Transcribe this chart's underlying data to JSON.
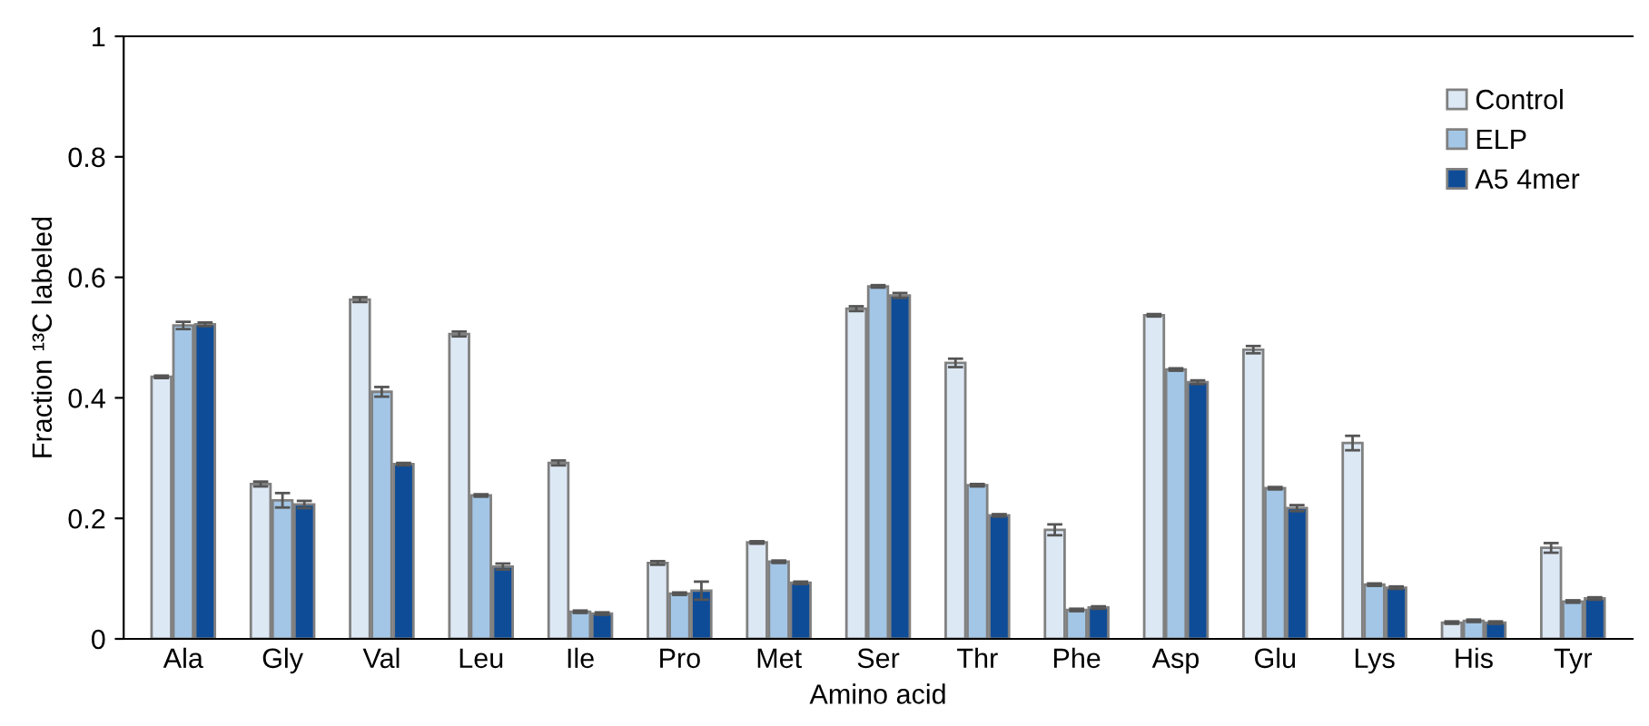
{
  "chart_data": {
    "type": "bar",
    "xlabel": "Amino acid",
    "ylabel": "Fraction ¹³C labeled",
    "categories": [
      "Ala",
      "Gly",
      "Val",
      "Leu",
      "Ile",
      "Pro",
      "Met",
      "Ser",
      "Thr",
      "Phe",
      "Asp",
      "Glu",
      "Lys",
      "His",
      "Tyr"
    ],
    "series": [
      {
        "name": "Control",
        "color": "#dde8f5",
        "values": [
          0.435,
          0.257,
          0.563,
          0.506,
          0.292,
          0.126,
          0.16,
          0.548,
          0.458,
          0.181,
          0.537,
          0.48,
          0.325,
          0.027,
          0.151
        ],
        "errors": [
          0.002,
          0.004,
          0.004,
          0.004,
          0.004,
          0.003,
          0.002,
          0.004,
          0.007,
          0.009,
          0.002,
          0.006,
          0.012,
          0.002,
          0.008
        ]
      },
      {
        "name": "ELP",
        "color": "#a3c6e6",
        "values": [
          0.52,
          0.23,
          0.41,
          0.238,
          0.045,
          0.075,
          0.128,
          0.585,
          0.255,
          0.048,
          0.447,
          0.25,
          0.09,
          0.03,
          0.062
        ],
        "errors": [
          0.006,
          0.012,
          0.008,
          0.002,
          0.002,
          0.002,
          0.002,
          0.002,
          0.002,
          0.002,
          0.002,
          0.002,
          0.002,
          0.002,
          0.002
        ]
      },
      {
        "name": "A5 4mer",
        "color": "#0f4c97",
        "values": [
          0.522,
          0.223,
          0.29,
          0.12,
          0.042,
          0.08,
          0.093,
          0.57,
          0.205,
          0.052,
          0.426,
          0.217,
          0.085,
          0.027,
          0.067
        ],
        "errors": [
          0.003,
          0.006,
          0.002,
          0.005,
          0.002,
          0.015,
          0.002,
          0.004,
          0.002,
          0.002,
          0.003,
          0.005,
          0.002,
          0.002,
          0.002
        ]
      }
    ],
    "ylim": [
      0,
      1
    ],
    "yticks": [
      0,
      0.2,
      0.4,
      0.6,
      0.8,
      1
    ],
    "grid": false,
    "legend": "top right"
  }
}
